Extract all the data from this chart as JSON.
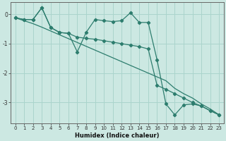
{
  "xlabel": "Humidex (Indice chaleur)",
  "x_values": [
    0,
    1,
    2,
    3,
    4,
    5,
    6,
    7,
    8,
    9,
    10,
    11,
    12,
    13,
    14,
    15,
    16,
    17,
    18,
    19,
    20,
    21,
    22,
    23
  ],
  "line1": [
    -0.12,
    -0.18,
    -0.18,
    0.22,
    -0.45,
    -0.62,
    -0.65,
    -1.28,
    -0.62,
    -0.18,
    -0.22,
    -0.25,
    -0.22,
    0.05,
    -0.28,
    -0.28,
    -1.55,
    -3.05,
    -3.42,
    -3.08,
    -3.05,
    -3.12,
    -3.28,
    -3.42
  ],
  "line2": [
    -0.12,
    -0.18,
    -0.18,
    0.22,
    -0.45,
    -0.62,
    -0.65,
    -0.78,
    -0.82,
    -0.85,
    -0.9,
    -0.95,
    -1.0,
    -1.05,
    -1.1,
    -1.18,
    -2.42,
    -2.55,
    -2.7,
    -2.85,
    -3.0,
    -3.12,
    -3.28,
    -3.42
  ],
  "line3": [
    -0.12,
    -0.22,
    -0.32,
    -0.44,
    -0.57,
    -0.7,
    -0.83,
    -0.96,
    -1.09,
    -1.22,
    -1.35,
    -1.48,
    -1.61,
    -1.74,
    -1.87,
    -2.0,
    -2.13,
    -2.26,
    -2.52,
    -2.7,
    -2.85,
    -3.05,
    -3.22,
    -3.42
  ],
  "line_color": "#2d7d6e",
  "bg_color": "#cce8e2",
  "grid_color": "#aad4cc",
  "ylim": [
    -3.7,
    0.4
  ],
  "xlim": [
    -0.5,
    23.5
  ],
  "yticks": [
    0,
    -1,
    -2,
    -3
  ],
  "xticks": [
    0,
    1,
    2,
    3,
    4,
    5,
    6,
    7,
    8,
    9,
    10,
    11,
    12,
    13,
    14,
    15,
    16,
    17,
    18,
    19,
    20,
    21,
    22,
    23
  ]
}
